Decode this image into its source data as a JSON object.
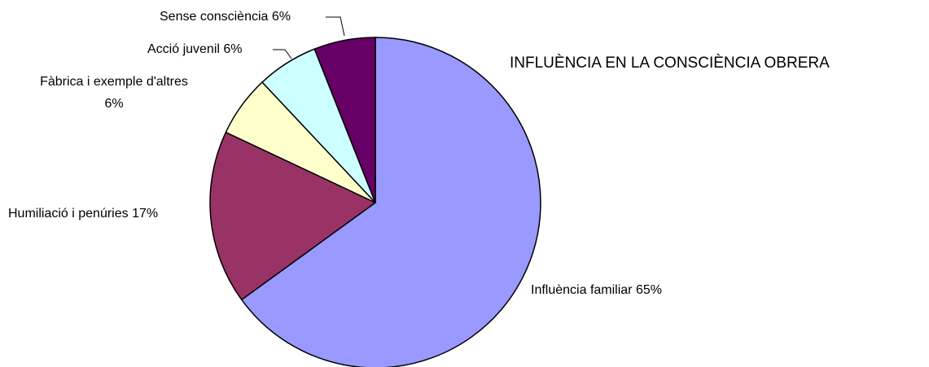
{
  "chart_data": {
    "type": "pie",
    "title": "INFLUÈNCIA EN LA CONSCIÈNCIA OBRERA",
    "categories": [
      "Influència familiar",
      "Humiliació i penúries",
      "Fàbrica i exemple d'altres",
      "Acció juvenil",
      "Sense consciència"
    ],
    "values": [
      65,
      17,
      6,
      6,
      6
    ],
    "value_labels": [
      "65%",
      "17%",
      "6%",
      "6%",
      "6%"
    ],
    "colors": [
      "#9999ff",
      "#993366",
      "#ffffcc",
      "#ccffff",
      "#660066"
    ]
  }
}
